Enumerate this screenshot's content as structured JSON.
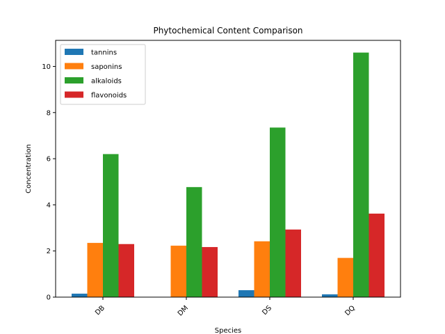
{
  "chart_data": {
    "type": "bar",
    "title": "Phytochemical Content Comparison",
    "xlabel": "Species",
    "ylabel": "Concentration",
    "categories": [
      "DB",
      "DM",
      "DS",
      "DQ"
    ],
    "series": [
      {
        "name": "tannins",
        "color": "#1f77b4",
        "values": [
          0.15,
          0.0,
          0.3,
          0.12
        ]
      },
      {
        "name": "saponins",
        "color": "#ff7f0e",
        "values": [
          2.35,
          2.23,
          2.42,
          1.7
        ]
      },
      {
        "name": "alkaloids",
        "color": "#2ca02c",
        "values": [
          6.2,
          4.77,
          7.35,
          10.6
        ]
      },
      {
        "name": "flavonoids",
        "color": "#d62728",
        "values": [
          2.3,
          2.17,
          2.93,
          3.62
        ]
      }
    ],
    "ylim": [
      0,
      11.13
    ],
    "yticks": [
      0,
      2,
      4,
      6,
      8,
      10
    ],
    "xtick_rotation": 45,
    "legend_position": "upper left",
    "grid": false
  }
}
